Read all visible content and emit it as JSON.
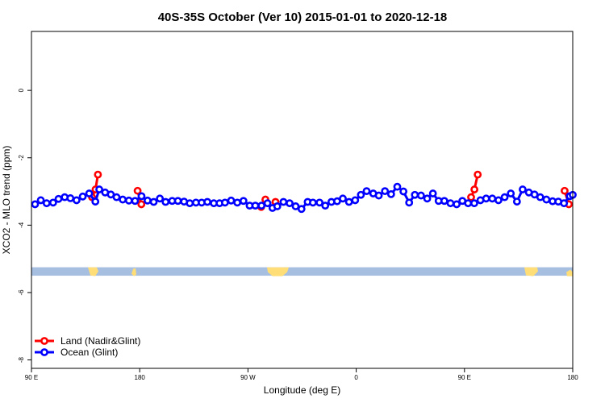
{
  "chart_data": {
    "type": "line",
    "title": "40S-35S October (Ver 10)   2015-01-01 to 2020-12-18",
    "xlabel": "Longitude (deg E)",
    "ylabel": "XCO2 - MLO trend (ppm)",
    "xlim": [
      90,
      450
    ],
    "ylim": [
      -8.25,
      1.75
    ],
    "x_ticks": [
      {
        "value": 90,
        "label": "90 E"
      },
      {
        "value": 162,
        "label": "180"
      },
      {
        "value": 234,
        "label": "90 W"
      },
      {
        "value": 306,
        "label": "0"
      },
      {
        "value": 378,
        "label": "90 E"
      },
      {
        "value": 450,
        "label": "180"
      }
    ],
    "y_ticks": [
      {
        "value": 0,
        "label": "0"
      },
      {
        "value": -2,
        "label": "-2"
      },
      {
        "value": -4,
        "label": "-4"
      },
      {
        "value": -6,
        "label": "-6"
      },
      {
        "value": -8,
        "label": "-8"
      }
    ],
    "legend_position": "bottom-left",
    "series": [
      {
        "name": "Land (Nadir&Glint)",
        "color": "#ff0000",
        "segments": [
          [
            [
              130.3,
              -3.17
            ],
            [
              132.6,
              -2.94
            ],
            [
              134.2,
              -2.5
            ]
          ],
          [
            [
              160.6,
              -2.98
            ],
            [
              163.1,
              -3.38
            ]
          ],
          [
            [
              242.8,
              -3.46
            ],
            [
              245.6,
              -3.24
            ]
          ],
          [
            [
              252.3,
              -3.31
            ]
          ],
          [
            [
              382.4,
              -3.17
            ],
            [
              384.6,
              -2.94
            ],
            [
              386.8,
              -2.5
            ]
          ],
          [
            [
              444.6,
              -2.98
            ],
            [
              447.4,
              -3.38
            ]
          ]
        ]
      },
      {
        "name": "Ocean (Glint)",
        "color": "#0000ff",
        "points": [
          [
            92.4,
            -3.38
          ],
          [
            96.2,
            -3.26
          ],
          [
            100.1,
            -3.35
          ],
          [
            104.4,
            -3.33
          ],
          [
            108.0,
            -3.22
          ],
          [
            112.1,
            -3.17
          ],
          [
            115.9,
            -3.2
          ],
          [
            120.0,
            -3.26
          ],
          [
            124.1,
            -3.15
          ],
          [
            128.4,
            -3.06
          ],
          [
            132.5,
            -3.3
          ],
          [
            135.1,
            -2.94
          ],
          [
            139.0,
            -3.03
          ],
          [
            142.8,
            -3.09
          ],
          [
            146.6,
            -3.17
          ],
          [
            150.7,
            -3.24
          ],
          [
            154.8,
            -3.27
          ],
          [
            158.9,
            -3.28
          ],
          [
            163.2,
            -3.14
          ],
          [
            167.2,
            -3.27
          ],
          [
            171.3,
            -3.31
          ],
          [
            175.4,
            -3.21
          ],
          [
            179.2,
            -3.31
          ],
          [
            183.6,
            -3.28
          ],
          [
            187.4,
            -3.28
          ],
          [
            191.5,
            -3.3
          ],
          [
            195.3,
            -3.35
          ],
          [
            199.4,
            -3.33
          ],
          [
            203.2,
            -3.33
          ],
          [
            207.0,
            -3.31
          ],
          [
            211.3,
            -3.35
          ],
          [
            215.1,
            -3.35
          ],
          [
            218.7,
            -3.33
          ],
          [
            222.8,
            -3.27
          ],
          [
            226.9,
            -3.33
          ],
          [
            231.0,
            -3.28
          ],
          [
            235.1,
            -3.42
          ],
          [
            238.9,
            -3.42
          ],
          [
            243.0,
            -3.42
          ],
          [
            247.0,
            -3.35
          ],
          [
            250.3,
            -3.49
          ],
          [
            253.5,
            -3.44
          ],
          [
            257.6,
            -3.31
          ],
          [
            261.7,
            -3.35
          ],
          [
            265.7,
            -3.44
          ],
          [
            269.6,
            -3.52
          ],
          [
            273.7,
            -3.31
          ],
          [
            277.2,
            -3.33
          ],
          [
            281.6,
            -3.33
          ],
          [
            285.4,
            -3.42
          ],
          [
            289.5,
            -3.31
          ],
          [
            293.3,
            -3.29
          ],
          [
            297.1,
            -3.21
          ],
          [
            301.2,
            -3.31
          ],
          [
            305.3,
            -3.26
          ],
          [
            309.1,
            -3.1
          ],
          [
            312.9,
            -2.99
          ],
          [
            317.3,
            -3.06
          ],
          [
            321.0,
            -3.12
          ],
          [
            325.1,
            -2.99
          ],
          [
            329.2,
            -3.08
          ],
          [
            333.3,
            -2.86
          ],
          [
            337.4,
            -3.0
          ],
          [
            341.2,
            -3.33
          ],
          [
            345.0,
            -3.1
          ],
          [
            349.1,
            -3.12
          ],
          [
            353.2,
            -3.21
          ],
          [
            357.0,
            -3.06
          ],
          [
            360.8,
            -3.28
          ],
          [
            364.6,
            -3.28
          ],
          [
            368.7,
            -3.35
          ],
          [
            372.8,
            -3.38
          ],
          [
            376.6,
            -3.28
          ],
          [
            380.4,
            -3.35
          ],
          [
            384.5,
            -3.35
          ],
          [
            388.6,
            -3.26
          ],
          [
            392.4,
            -3.21
          ],
          [
            396.5,
            -3.21
          ],
          [
            400.6,
            -3.26
          ],
          [
            404.7,
            -3.17
          ],
          [
            408.8,
            -3.06
          ],
          [
            412.9,
            -3.3
          ],
          [
            416.7,
            -2.94
          ],
          [
            420.8,
            -3.03
          ],
          [
            424.6,
            -3.09
          ],
          [
            428.4,
            -3.17
          ],
          [
            432.5,
            -3.24
          ],
          [
            436.6,
            -3.29
          ],
          [
            440.4,
            -3.3
          ],
          [
            444.2,
            -3.35
          ],
          [
            448.0,
            -3.14
          ],
          [
            450.0,
            -3.1
          ]
        ]
      }
    ],
    "map_strip": {
      "lat_range": [
        -40,
        -35
      ],
      "ocean_color": "#a6bee0",
      "land_color": "#ffdd77"
    }
  }
}
